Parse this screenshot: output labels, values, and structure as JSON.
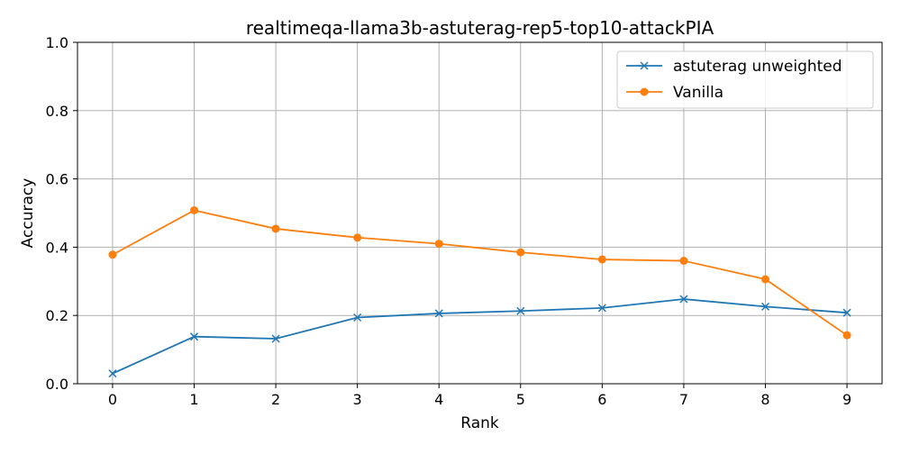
{
  "chart_data": {
    "type": "line",
    "title": "realtimeqa-llama3b-astuterag-rep5-top10-attackPIA",
    "xlabel": "Rank",
    "ylabel": "Accuracy",
    "x": [
      0,
      1,
      2,
      3,
      4,
      5,
      6,
      7,
      8,
      9
    ],
    "xlim": [
      -0.43,
      9.43
    ],
    "ylim": [
      0.0,
      1.0
    ],
    "xticks": [
      0,
      1,
      2,
      3,
      4,
      5,
      6,
      7,
      8,
      9
    ],
    "yticks": [
      0.0,
      0.2,
      0.4,
      0.6,
      0.8,
      1.0
    ],
    "ytick_labels": [
      "0.0",
      "0.2",
      "0.4",
      "0.6",
      "0.8",
      "1.0"
    ],
    "grid": true,
    "legend_position": "top-right",
    "series": [
      {
        "name": "astuterag unweighted",
        "color": "#1f77b4",
        "marker": "x",
        "values": [
          0.03,
          0.138,
          0.132,
          0.194,
          0.206,
          0.213,
          0.222,
          0.248,
          0.226,
          0.208
        ]
      },
      {
        "name": "Vanilla",
        "color": "#ff7f0e",
        "marker": "circle",
        "values": [
          0.378,
          0.508,
          0.454,
          0.428,
          0.41,
          0.385,
          0.364,
          0.36,
          0.306,
          0.142
        ]
      }
    ]
  }
}
